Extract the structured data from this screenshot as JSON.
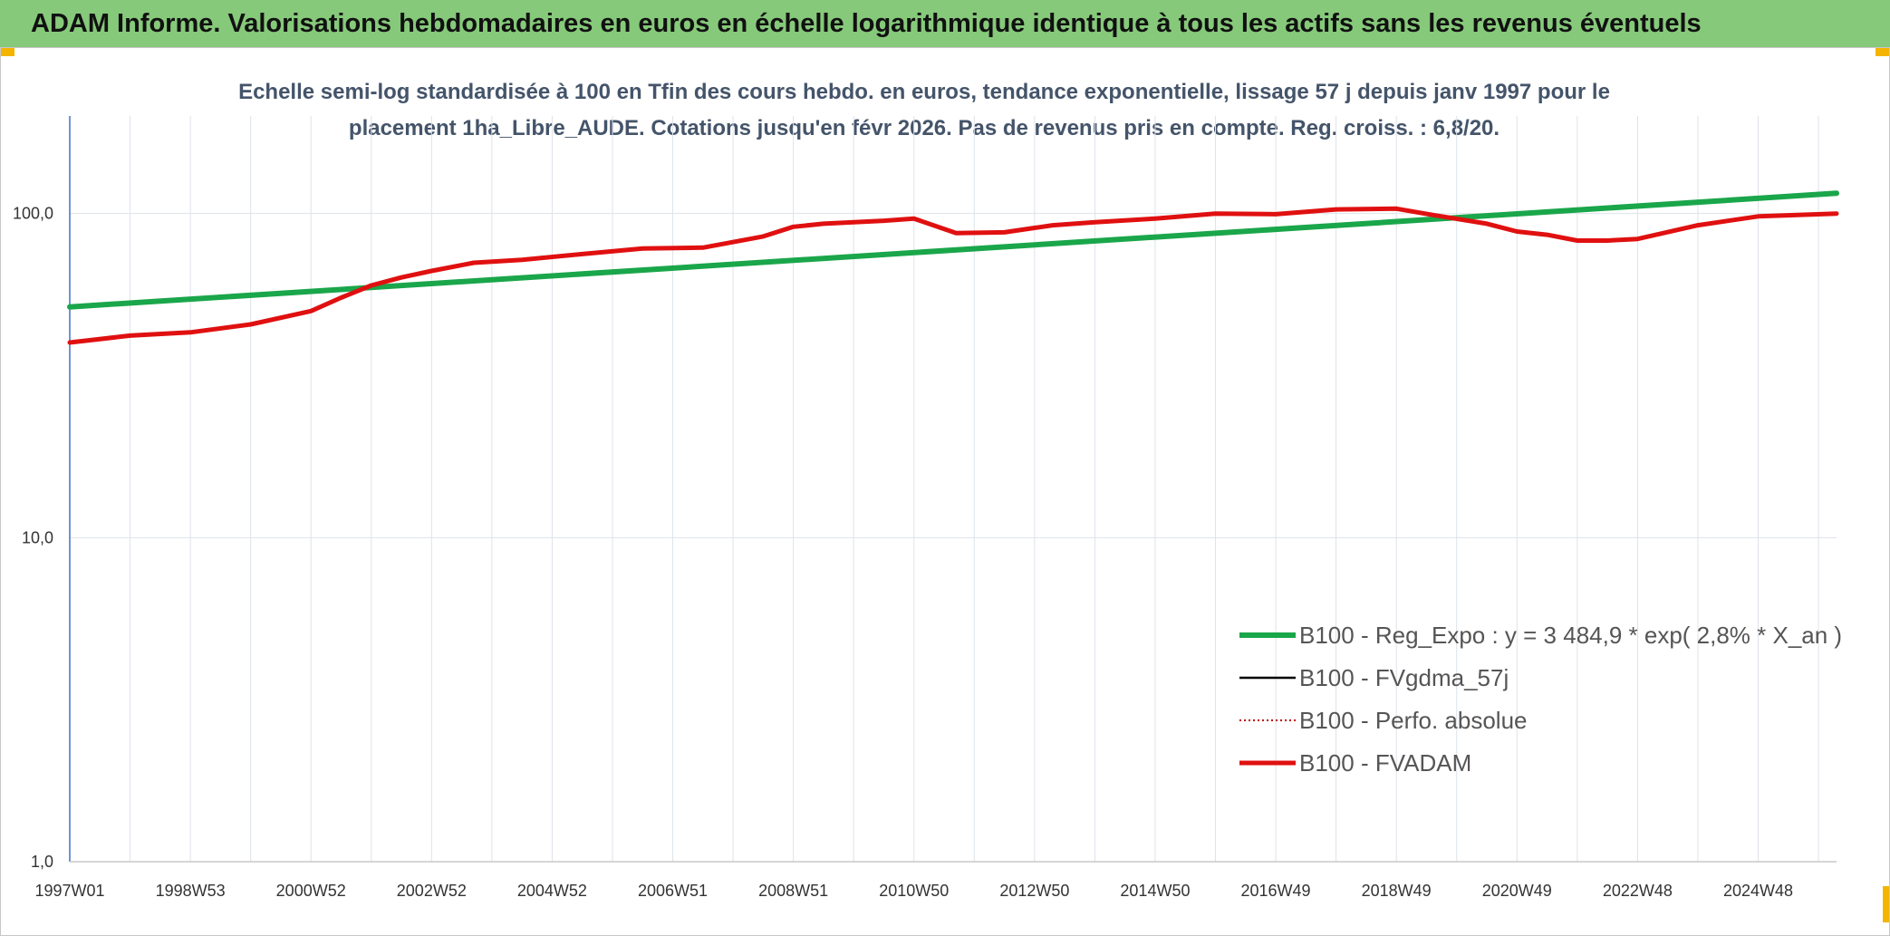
{
  "header": {
    "title": "ADAM Informe. Valorisations hebdomadaires en euros en échelle logarithmique identique à tous les actifs sans les revenus éventuels"
  },
  "colors": {
    "banner": "#86c97a",
    "accent": "#f4b400",
    "reg_expo": "#1aa64a",
    "fvgdma": "#000000",
    "perfo": "#c00000",
    "fvadam": "#e01010"
  },
  "chart_data": {
    "type": "line",
    "title": "Echelle semi-log standardisée à 100 en Tfin des cours hebdo. en euros, tendance exponentielle, lissage 57 j depuis janv 1997 pour le placement 1ha_Libre_AUDE. Cotations jusqu'en févr 2026. Pas de revenus pris en compte. Reg. croiss. : 6,8/20.",
    "title_lines": [
      "Echelle semi-log standardisée à 100 en Tfin des cours hebdo. en euros, tendance exponentielle, lissage 57 j depuis janv 1997 pour le",
      "placement 1ha_Libre_AUDE. Cotations jusqu'en févr 2026. Pas de revenus pris en compte. Reg. croiss. : 6,8/20."
    ],
    "y_scale": "log",
    "ylim": [
      1,
      200
    ],
    "y_ticks": [
      {
        "value": 1,
        "label": "1,0"
      },
      {
        "value": 10,
        "label": "10,0"
      },
      {
        "value": 100,
        "label": "100,0"
      }
    ],
    "xlim": [
      1997.0,
      2026.3
    ],
    "x_ticks": [
      {
        "value": 1997.0,
        "label": "1997W01"
      },
      {
        "value": 1999.0,
        "label": "1998W53"
      },
      {
        "value": 2001.0,
        "label": "2000W52"
      },
      {
        "value": 2003.0,
        "label": "2002W52"
      },
      {
        "value": 2005.0,
        "label": "2004W52"
      },
      {
        "value": 2007.0,
        "label": "2006W51"
      },
      {
        "value": 2009.0,
        "label": "2008W51"
      },
      {
        "value": 2011.0,
        "label": "2010W50"
      },
      {
        "value": 2013.0,
        "label": "2012W50"
      },
      {
        "value": 2015.0,
        "label": "2014W50"
      },
      {
        "value": 2017.0,
        "label": "2016W49"
      },
      {
        "value": 2019.0,
        "label": "2018W49"
      },
      {
        "value": 2021.0,
        "label": "2020W49"
      },
      {
        "value": 2023.0,
        "label": "2022W48"
      },
      {
        "value": 2025.0,
        "label": "2024W48"
      }
    ],
    "grid": true,
    "legend_position": "lower-right",
    "series": [
      {
        "name": "B100 - Reg_Expo : y = 3 484,9 * exp( 2,8% *  X_an )",
        "style": "solid-thick",
        "x": [
          1997.0,
          2026.3
        ],
        "y": [
          51.5,
          115.5
        ]
      },
      {
        "name": "B100 - FVgdma_57j",
        "style": "solid-thin",
        "x": [],
        "y": []
      },
      {
        "name": "B100 - Perfo. absolue",
        "style": "dotted",
        "x": [],
        "y": []
      },
      {
        "name": "B100 - FVADAM",
        "style": "solid-thick",
        "x": [
          1997.0,
          1998.0,
          1999.0,
          2000.0,
          2001.0,
          2001.5,
          2002.0,
          2002.5,
          2003.0,
          2003.7,
          2004.5,
          2005.5,
          2006.5,
          2007.5,
          2008.5,
          2009.0,
          2009.5,
          2010.5,
          2011.0,
          2011.7,
          2012.5,
          2013.3,
          2014.0,
          2015.0,
          2016.0,
          2017.0,
          2018.0,
          2019.0,
          2019.6,
          2020.5,
          2021.0,
          2021.5,
          2022.0,
          2022.5,
          2023.0,
          2024.0,
          2025.0,
          2026.3
        ],
        "y": [
          40.0,
          42.0,
          43.0,
          45.5,
          50.0,
          55.0,
          60.0,
          63.5,
          66.5,
          70.5,
          72.0,
          75.0,
          78.0,
          78.5,
          85.0,
          91.0,
          93.0,
          95.0,
          96.5,
          87.0,
          87.5,
          92.0,
          94.0,
          96.5,
          100.0,
          99.5,
          103.0,
          103.5,
          99.0,
          93.0,
          88.0,
          86.0,
          82.5,
          82.5,
          83.5,
          92.0,
          98.0,
          100.0
        ]
      }
    ]
  }
}
